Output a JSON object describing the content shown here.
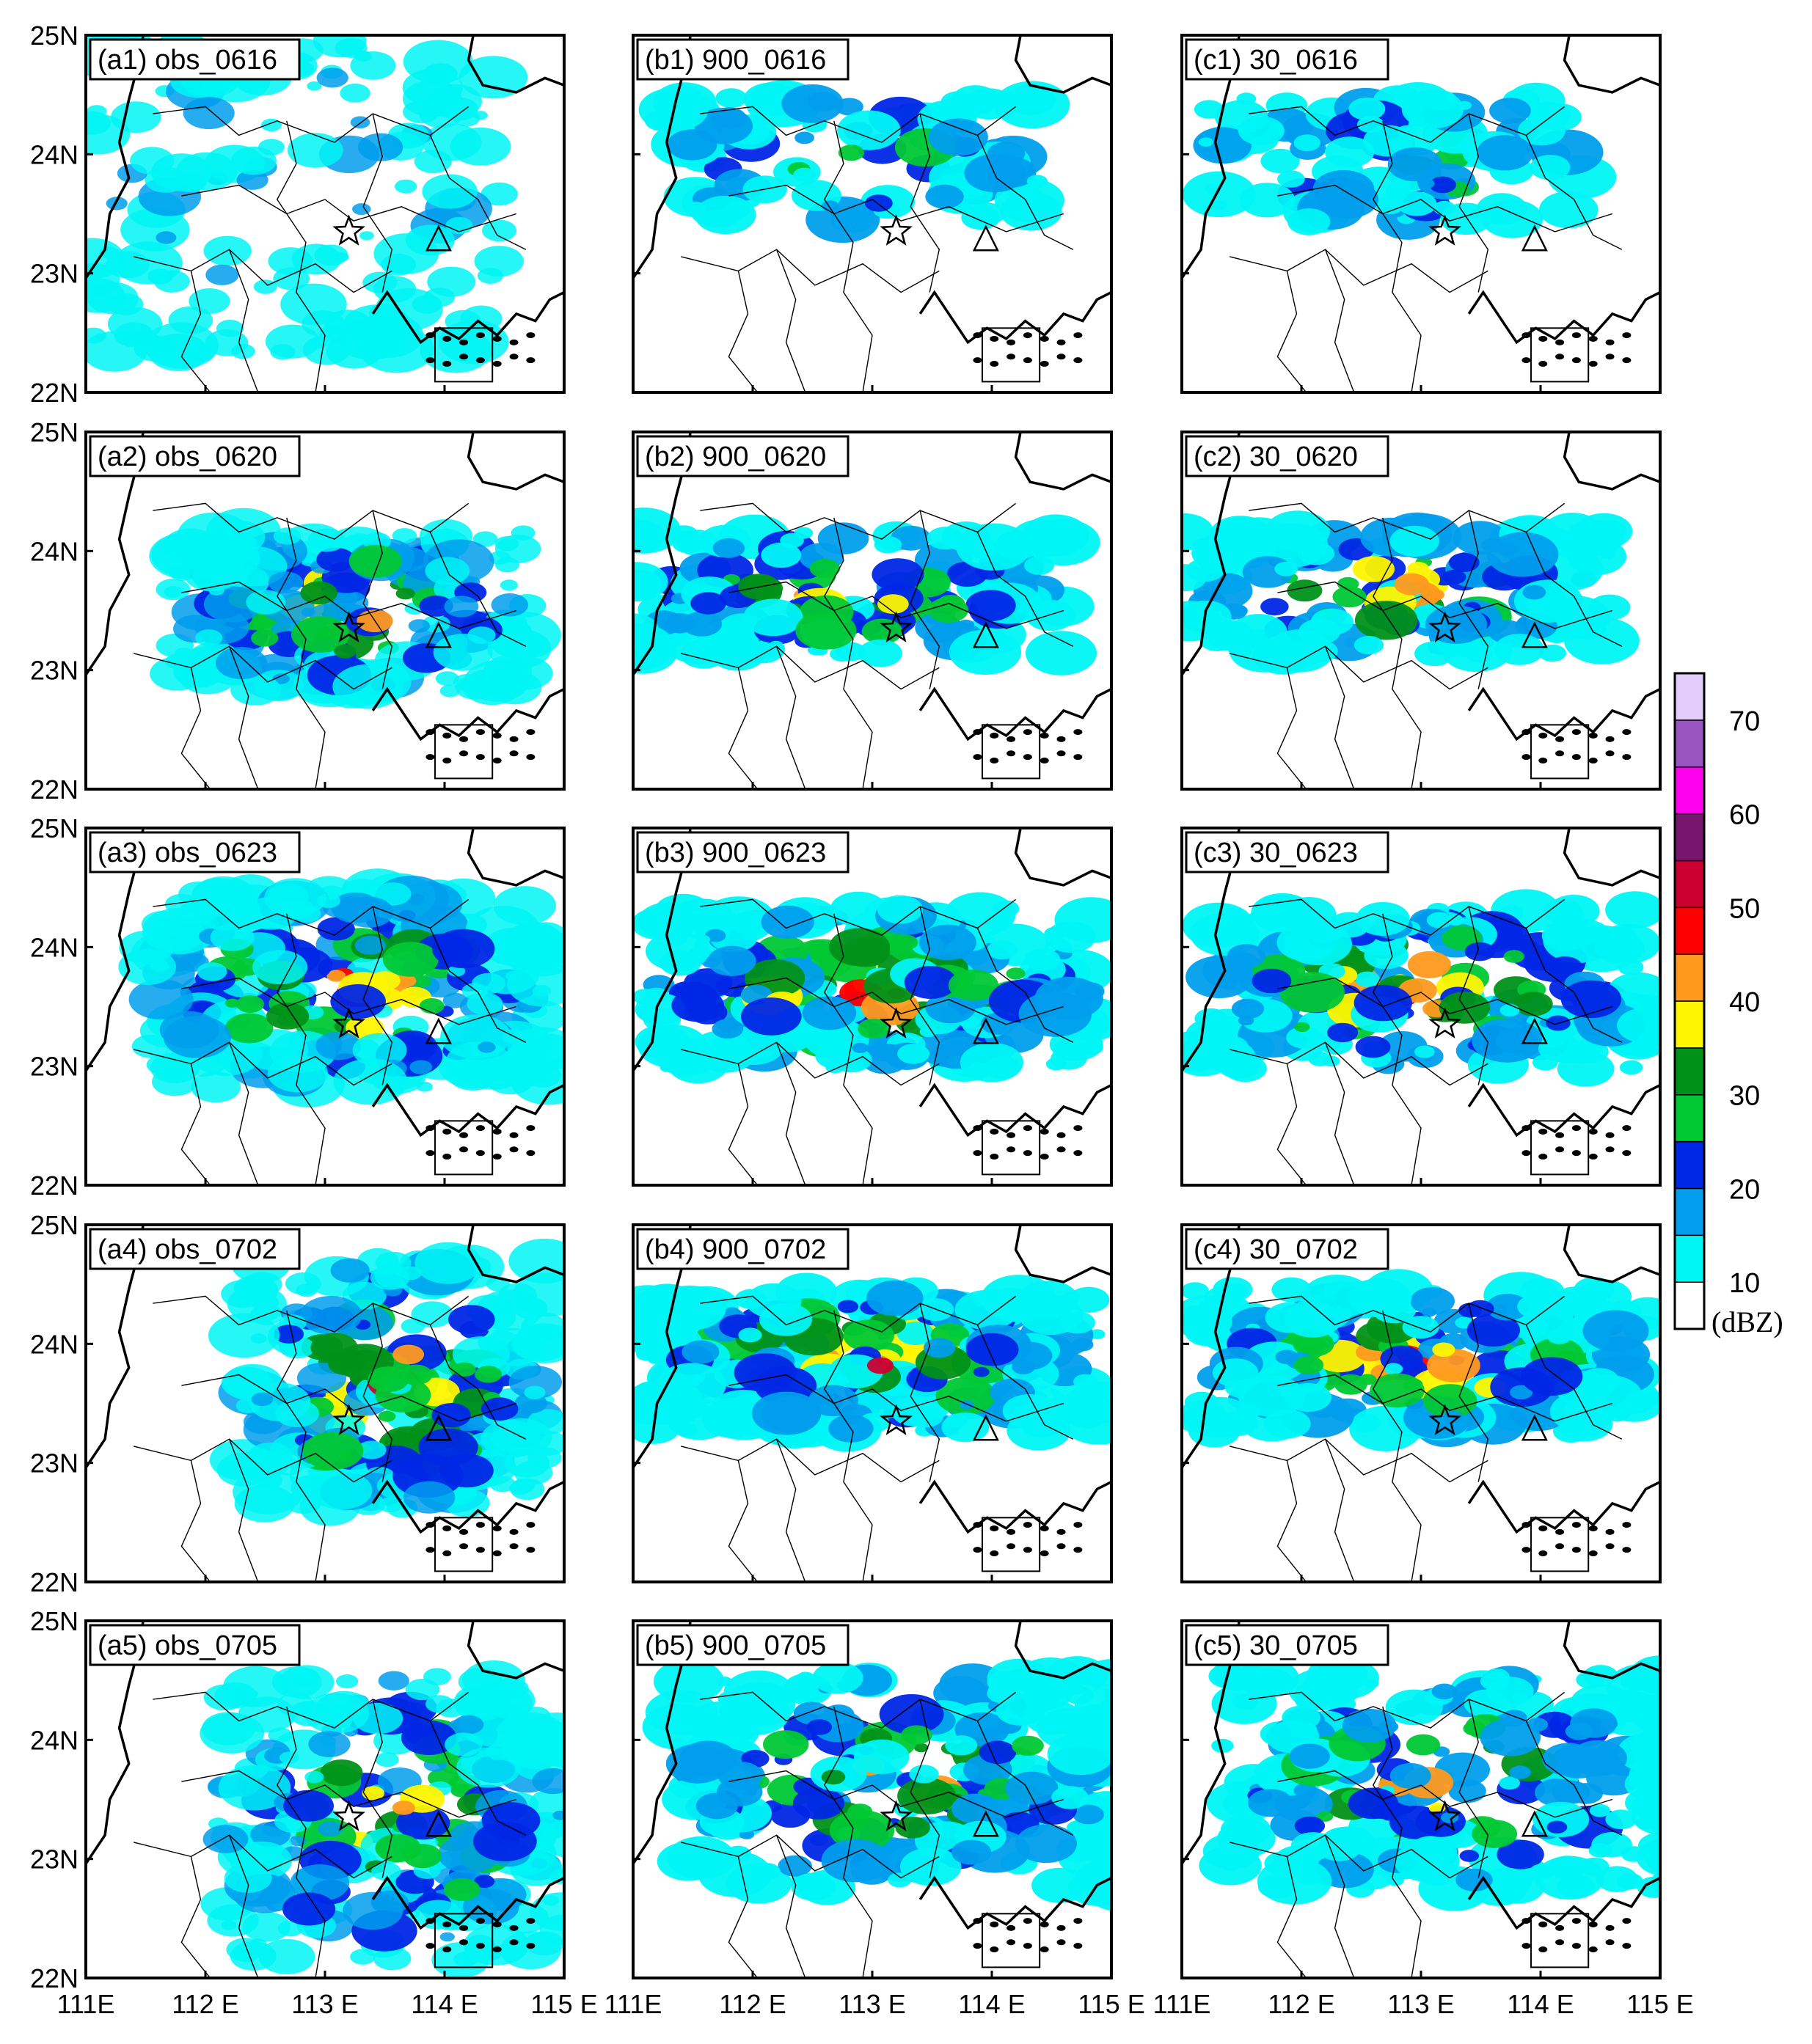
{
  "figure": {
    "rows": [
      {
        "labels": [
          "(a1) obs_0616",
          "(b1) 900_0616",
          "(c1) 30_0616"
        ]
      },
      {
        "labels": [
          "(a2) obs_0620",
          "(b2) 900_0620",
          "(c2) 30_0620"
        ]
      },
      {
        "labels": [
          "(a3) obs_0623",
          "(b3) 900_0623",
          "(c3) 30_0623"
        ]
      },
      {
        "labels": [
          "(a4) obs_0702",
          "(b4) 900_0702",
          "(c4) 30_0702"
        ]
      },
      {
        "labels": [
          "(a5) obs_0705",
          "(b5) 900_0705",
          "(c5) 30_0705"
        ]
      }
    ],
    "lat_ticks": [
      "25N",
      "24N",
      "23N",
      "22N"
    ],
    "lon_ticks": [
      "111E",
      "112 E",
      "113 E",
      "114 E",
      "115 E"
    ],
    "markers": {
      "star": {
        "lon": 113.2,
        "lat": 23.35,
        "icon": "star-icon"
      },
      "triangle": {
        "lon": 113.95,
        "lat": 23.28,
        "icon": "triangle-icon"
      }
    },
    "colorbar": {
      "unit": "(dBZ)",
      "tick_labels": [
        "10",
        "20",
        "30",
        "40",
        "50",
        "60",
        "70"
      ],
      "colors": [
        "#ffffff",
        "#00f5f5",
        "#009eec",
        "#0026e6",
        "#00c834",
        "#009119",
        "#fef600",
        "#ff9a1f",
        "#ff0000",
        "#cc0030",
        "#78166e",
        "#ff00f0",
        "#9a55c2",
        "#e3ccfa"
      ]
    }
  }
}
